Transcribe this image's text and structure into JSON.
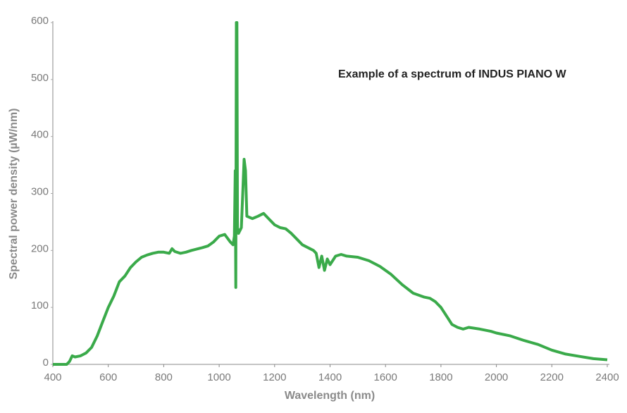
{
  "chart_data": {
    "type": "line",
    "annotation": "Example of a spectrum of INDUS PIANO W",
    "x_label": "Wavelength (nm)",
    "y_label": "Spectral power density (µW/nm)",
    "color": "#3aaa4a",
    "x": [
      400,
      450,
      460,
      470,
      480,
      500,
      520,
      540,
      560,
      580,
      600,
      620,
      640,
      660,
      680,
      700,
      720,
      740,
      760,
      780,
      800,
      820,
      830,
      840,
      860,
      880,
      900,
      940,
      960,
      980,
      1000,
      1020,
      1040,
      1050,
      1055,
      1058,
      1060,
      1062,
      1064,
      1066,
      1070,
      1080,
      1090,
      1095,
      1100,
      1120,
      1140,
      1160,
      1180,
      1200,
      1220,
      1240,
      1260,
      1280,
      1300,
      1320,
      1340,
      1350,
      1360,
      1370,
      1380,
      1390,
      1400,
      1420,
      1440,
      1460,
      1500,
      1540,
      1580,
      1620,
      1660,
      1700,
      1740,
      1760,
      1780,
      1800,
      1820,
      1840,
      1860,
      1880,
      1900,
      1940,
      1980,
      2000,
      2050,
      2100,
      2150,
      2200,
      2250,
      2300,
      2350,
      2400
    ],
    "values": [
      0,
      0,
      5,
      15,
      13,
      15,
      20,
      30,
      50,
      75,
      100,
      120,
      145,
      155,
      170,
      180,
      188,
      192,
      195,
      197,
      197,
      195,
      203,
      198,
      195,
      197,
      200,
      205,
      208,
      215,
      225,
      228,
      215,
      210,
      225,
      340,
      135,
      600,
      600,
      240,
      230,
      240,
      360,
      340,
      260,
      256,
      260,
      265,
      255,
      245,
      240,
      238,
      230,
      220,
      210,
      205,
      200,
      195,
      170,
      190,
      165,
      185,
      175,
      190,
      193,
      190,
      188,
      182,
      172,
      158,
      140,
      125,
      118,
      116,
      110,
      100,
      85,
      70,
      65,
      62,
      65,
      62,
      58,
      55,
      50,
      42,
      35,
      25,
      18,
      14,
      10,
      8
    ],
    "xlim": [
      400,
      2400
    ],
    "ylim": [
      0,
      600
    ],
    "xticks": [
      400,
      600,
      800,
      1000,
      1200,
      1400,
      1600,
      1800,
      2000,
      2200,
      2400
    ],
    "yticks": [
      0,
      100,
      200,
      300,
      400,
      500,
      600
    ],
    "grid": false
  }
}
